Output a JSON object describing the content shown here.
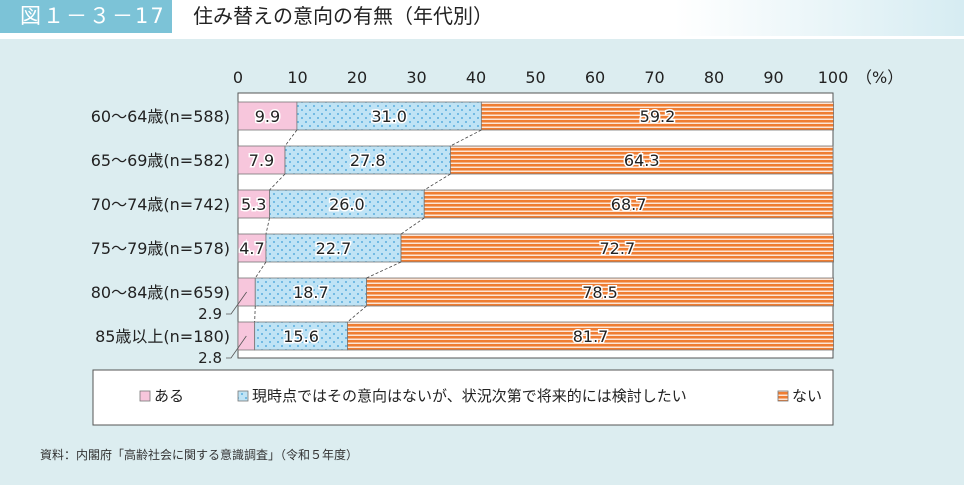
{
  "header": {
    "figure_number": "図１－３－17",
    "title": "住み替えの意向の有無（年代別）"
  },
  "chart_data": {
    "type": "bar",
    "orientation": "horizontal-stacked-100",
    "categories": [
      "60～64歳(n=588)",
      "65～69歳(n=582)",
      "70～74歳(n=742)",
      "75～79歳(n=578)",
      "80～84歳(n=659)",
      "85歳以上(n=180)"
    ],
    "series": [
      {
        "name": "ある",
        "values": [
          9.9,
          7.9,
          5.3,
          4.7,
          2.9,
          2.8
        ],
        "color": "#f7c6dc"
      },
      {
        "name": "現時点ではその意向はないが、状況次第で将来的には検討したい",
        "values": [
          31.0,
          27.8,
          26.0,
          22.7,
          18.7,
          15.6
        ],
        "color": "#bfe3f5"
      },
      {
        "name": "ない",
        "values": [
          59.2,
          64.3,
          68.7,
          72.7,
          78.5,
          81.7
        ],
        "color": "#ef7d32"
      }
    ],
    "xlim": [
      0,
      100
    ],
    "xticks": [
      "0",
      "10",
      "20",
      "30",
      "40",
      "50",
      "60",
      "70",
      "80",
      "90",
      "100"
    ],
    "xunit": "（%）",
    "legend": "bottom"
  },
  "source": "資料：内閣府「高齢社会に関する意識調査」（令和５年度）"
}
